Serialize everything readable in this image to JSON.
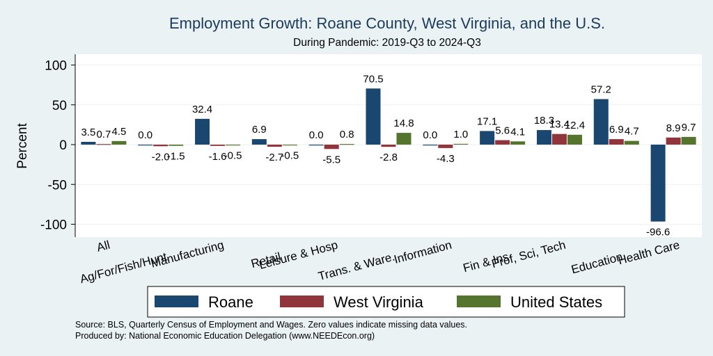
{
  "chart_data": {
    "type": "bar",
    "title": "Employment Growth: Roane County, West Virginia, and the U.S.",
    "subtitle": "During Pandemic: 2019-Q3 to 2024-Q3",
    "ylabel": "Percent",
    "ylim": [
      -110,
      110
    ],
    "yticks": [
      100,
      50,
      0,
      -50,
      -100
    ],
    "categories": [
      "All",
      "Ag/For/Fish/Hunt",
      "Manufacturing",
      "Retail",
      "Leisure & Hosp",
      "Trans. & Ware.",
      "Information",
      "Fin & Ins",
      "Prof, Sci, Tech",
      "Education",
      "Health Care"
    ],
    "series": [
      {
        "name": "Roane",
        "color": "#1a476f",
        "values": [
          3.5,
          0.0,
          32.4,
          6.9,
          0.0,
          70.5,
          0.0,
          17.1,
          18.3,
          57.2,
          -96.6
        ]
      },
      {
        "name": "West Virginia",
        "color": "#90353b",
        "values": [
          0.7,
          -2.0,
          -1.6,
          -2.7,
          -5.5,
          -2.8,
          -4.3,
          5.6,
          13.4,
          6.9,
          8.9
        ]
      },
      {
        "name": "United States",
        "color": "#55752f",
        "values": [
          4.5,
          -1.5,
          -0.5,
          -0.5,
          0.8,
          14.8,
          1.0,
          4.1,
          12.4,
          4.7,
          9.7
        ]
      }
    ],
    "data_labels": [
      [
        "3.5",
        "0.0",
        "32.4",
        "6.9",
        "0.0",
        "70.5",
        "0.0",
        "17.1",
        "18.3",
        "57.2",
        "-96.6"
      ],
      [
        "0.7",
        "-2.0",
        "-1.6",
        "-2.7",
        "-5.5",
        "-2.8",
        "-4.3",
        "5.6",
        "13.4",
        "6.9",
        "8.9"
      ],
      [
        "4.5",
        "-1.5",
        "-0.5",
        "-0.5",
        "0.8",
        "14.8",
        "1.0",
        "4.1",
        "12.4",
        "4.7",
        "9.7"
      ]
    ],
    "legend_position": "bottom",
    "grid": true
  },
  "notes": [
    "Source: BLS, Quarterly Census of Employment and Wages. Zero values indicate missing data values.",
    "Produced by: National Economic Education Delegation (www.NEEDEcon.org)"
  ]
}
